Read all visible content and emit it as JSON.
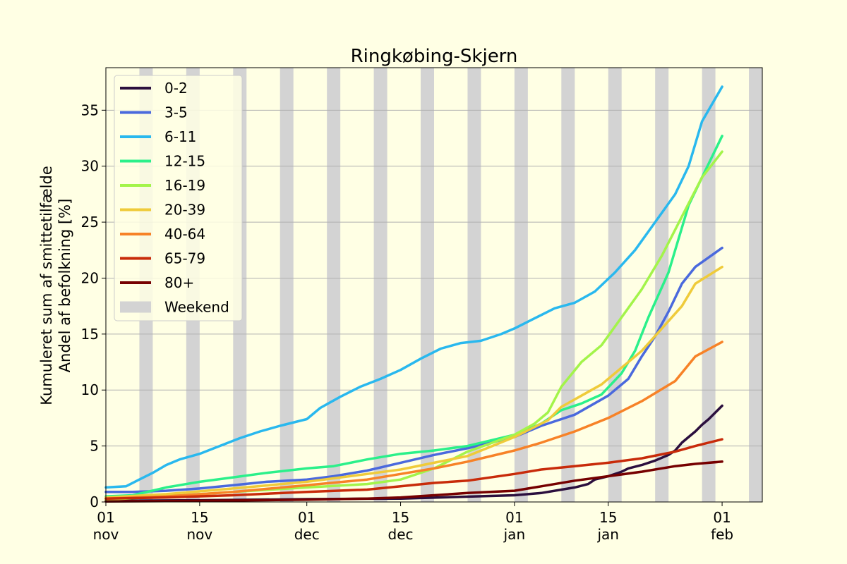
{
  "chart_data": {
    "type": "line",
    "title": "Ringkøbing-Skjern",
    "ylabel_lines": [
      "Kumuleret sum af smittetilfælde",
      "Andel af befolkning [%]"
    ],
    "xlabel": "",
    "x_start": "2021-11-01",
    "x_end": "2022-02-07",
    "ylim": [
      0,
      38.8
    ],
    "y_ticks": [
      0,
      5,
      10,
      15,
      20,
      25,
      30,
      35
    ],
    "x_ticks": [
      {
        "date": "2021-11-01",
        "day": "01",
        "month": "nov"
      },
      {
        "date": "2021-11-15",
        "day": "15",
        "month": "nov"
      },
      {
        "date": "2021-12-01",
        "day": "01",
        "month": "dec"
      },
      {
        "date": "2021-12-15",
        "day": "15",
        "month": "dec"
      },
      {
        "date": "2022-01-01",
        "day": "01",
        "month": "jan"
      },
      {
        "date": "2022-01-15",
        "day": "15",
        "month": "jan"
      },
      {
        "date": "2022-02-01",
        "day": "01",
        "month": "feb"
      }
    ],
    "grid": "horizontal",
    "legend_position": "upper-left",
    "weekend_label": "Weekend",
    "weekend_color": "#d3d3d3",
    "weekend_starts": [
      "2021-11-06",
      "2021-11-13",
      "2021-11-20",
      "2021-11-27",
      "2021-12-04",
      "2021-12-11",
      "2021-12-18",
      "2021-12-25",
      "2022-01-01",
      "2022-01-08",
      "2022-01-15",
      "2022-01-22",
      "2022-01-29",
      "2022-02-05"
    ],
    "series": [
      {
        "name": "0-2",
        "color": "#2b0f3e",
        "points": [
          [
            "2021-11-01",
            0.1
          ],
          [
            "2021-11-15",
            0.15
          ],
          [
            "2021-12-01",
            0.25
          ],
          [
            "2021-12-15",
            0.3
          ],
          [
            "2022-01-01",
            0.6
          ],
          [
            "2022-01-05",
            0.8
          ],
          [
            "2022-01-10",
            1.3
          ],
          [
            "2022-01-12",
            1.6
          ],
          [
            "2022-01-13",
            2.0
          ],
          [
            "2022-01-15",
            2.3
          ],
          [
            "2022-01-17",
            2.7
          ],
          [
            "2022-01-18",
            3.0
          ],
          [
            "2022-01-20",
            3.3
          ],
          [
            "2022-01-22",
            3.7
          ],
          [
            "2022-01-24",
            4.2
          ],
          [
            "2022-01-25",
            4.6
          ],
          [
            "2022-01-26",
            5.3
          ],
          [
            "2022-01-27",
            5.8
          ],
          [
            "2022-01-28",
            6.3
          ],
          [
            "2022-01-29",
            6.9
          ],
          [
            "2022-01-30",
            7.4
          ],
          [
            "2022-01-31",
            8.0
          ],
          [
            "2022-02-01",
            8.6
          ]
        ]
      },
      {
        "name": "3-5",
        "color": "#4a69dd",
        "points": [
          [
            "2021-11-01",
            0.9
          ],
          [
            "2021-11-05",
            0.9
          ],
          [
            "2021-11-10",
            1.0
          ],
          [
            "2021-11-15",
            1.2
          ],
          [
            "2021-11-20",
            1.5
          ],
          [
            "2021-11-25",
            1.8
          ],
          [
            "2021-12-01",
            2.0
          ],
          [
            "2021-12-05",
            2.3
          ],
          [
            "2021-12-10",
            2.8
          ],
          [
            "2021-12-15",
            3.5
          ],
          [
            "2021-12-20",
            4.2
          ],
          [
            "2021-12-25",
            4.8
          ],
          [
            "2022-01-01",
            5.8
          ],
          [
            "2022-01-05",
            6.8
          ],
          [
            "2022-01-10",
            7.8
          ],
          [
            "2022-01-15",
            9.5
          ],
          [
            "2022-01-18",
            11.0
          ],
          [
            "2022-01-20",
            13.0
          ],
          [
            "2022-01-22",
            14.8
          ],
          [
            "2022-01-24",
            17.0
          ],
          [
            "2022-01-26",
            19.5
          ],
          [
            "2022-01-28",
            21.0
          ],
          [
            "2022-02-01",
            22.7
          ]
        ]
      },
      {
        "name": "6-11",
        "color": "#29b8ee",
        "points": [
          [
            "2021-11-01",
            1.3
          ],
          [
            "2021-11-04",
            1.4
          ],
          [
            "2021-11-06",
            2.0
          ],
          [
            "2021-11-08",
            2.6
          ],
          [
            "2021-11-10",
            3.3
          ],
          [
            "2021-11-12",
            3.8
          ],
          [
            "2021-11-15",
            4.3
          ],
          [
            "2021-11-18",
            5.0
          ],
          [
            "2021-11-21",
            5.7
          ],
          [
            "2021-11-24",
            6.3
          ],
          [
            "2021-11-27",
            6.8
          ],
          [
            "2021-12-01",
            7.4
          ],
          [
            "2021-12-03",
            8.4
          ],
          [
            "2021-12-06",
            9.4
          ],
          [
            "2021-12-09",
            10.3
          ],
          [
            "2021-12-12",
            11.0
          ],
          [
            "2021-12-15",
            11.8
          ],
          [
            "2021-12-18",
            12.8
          ],
          [
            "2021-12-21",
            13.7
          ],
          [
            "2021-12-24",
            14.2
          ],
          [
            "2021-12-27",
            14.4
          ],
          [
            "2021-12-30",
            15.0
          ],
          [
            "2022-01-01",
            15.5
          ],
          [
            "2022-01-04",
            16.4
          ],
          [
            "2022-01-07",
            17.3
          ],
          [
            "2022-01-10",
            17.8
          ],
          [
            "2022-01-13",
            18.8
          ],
          [
            "2022-01-16",
            20.5
          ],
          [
            "2022-01-19",
            22.5
          ],
          [
            "2022-01-22",
            25.0
          ],
          [
            "2022-01-25",
            27.5
          ],
          [
            "2022-01-27",
            30.0
          ],
          [
            "2022-01-29",
            34.0
          ],
          [
            "2022-02-01",
            37.1
          ]
        ]
      },
      {
        "name": "12-15",
        "color": "#2bf08a",
        "points": [
          [
            "2021-11-01",
            0.5
          ],
          [
            "2021-11-05",
            0.6
          ],
          [
            "2021-11-10",
            1.3
          ],
          [
            "2021-11-15",
            1.8
          ],
          [
            "2021-11-20",
            2.2
          ],
          [
            "2021-11-25",
            2.6
          ],
          [
            "2021-12-01",
            3.0
          ],
          [
            "2021-12-05",
            3.2
          ],
          [
            "2021-12-10",
            3.8
          ],
          [
            "2021-12-15",
            4.3
          ],
          [
            "2021-12-20",
            4.6
          ],
          [
            "2021-12-25",
            5.0
          ],
          [
            "2022-01-01",
            6.0
          ],
          [
            "2022-01-05",
            7.0
          ],
          [
            "2022-01-08",
            8.2
          ],
          [
            "2022-01-11",
            8.8
          ],
          [
            "2022-01-14",
            9.6
          ],
          [
            "2022-01-17",
            11.5
          ],
          [
            "2022-01-19",
            13.5
          ],
          [
            "2022-01-21",
            16.5
          ],
          [
            "2022-01-24",
            20.5
          ],
          [
            "2022-01-27",
            26.5
          ],
          [
            "2022-01-29",
            29.0
          ],
          [
            "2022-02-01",
            32.7
          ]
        ]
      },
      {
        "name": "16-19",
        "color": "#a3f44a",
        "points": [
          [
            "2021-11-01",
            0.2
          ],
          [
            "2021-11-10",
            0.5
          ],
          [
            "2021-11-20",
            0.9
          ],
          [
            "2021-12-01",
            1.3
          ],
          [
            "2021-12-10",
            1.6
          ],
          [
            "2021-12-15",
            2.0
          ],
          [
            "2021-12-20",
            3.0
          ],
          [
            "2021-12-25",
            4.5
          ],
          [
            "2022-01-01",
            6.0
          ],
          [
            "2022-01-04",
            7.0
          ],
          [
            "2022-01-06",
            8.0
          ],
          [
            "2022-01-08",
            10.3
          ],
          [
            "2022-01-11",
            12.5
          ],
          [
            "2022-01-14",
            14.0
          ],
          [
            "2022-01-17",
            16.5
          ],
          [
            "2022-01-20",
            19.0
          ],
          [
            "2022-01-23",
            22.0
          ],
          [
            "2022-01-26",
            25.5
          ],
          [
            "2022-01-29",
            29.0
          ],
          [
            "2022-02-01",
            31.3
          ]
        ]
      },
      {
        "name": "20-39",
        "color": "#efcb3a",
        "points": [
          [
            "2021-11-01",
            0.4
          ],
          [
            "2021-11-10",
            0.7
          ],
          [
            "2021-11-20",
            1.2
          ],
          [
            "2021-12-01",
            1.8
          ],
          [
            "2021-12-10",
            2.5
          ],
          [
            "2021-12-15",
            2.9
          ],
          [
            "2021-12-20",
            3.5
          ],
          [
            "2021-12-25",
            4.1
          ],
          [
            "2022-01-01",
            5.8
          ],
          [
            "2022-01-06",
            7.3
          ],
          [
            "2022-01-08",
            8.5
          ],
          [
            "2022-01-11",
            9.5
          ],
          [
            "2022-01-14",
            10.5
          ],
          [
            "2022-01-17",
            12.0
          ],
          [
            "2022-01-20",
            13.5
          ],
          [
            "2022-01-23",
            15.5
          ],
          [
            "2022-01-26",
            17.5
          ],
          [
            "2022-01-28",
            19.5
          ],
          [
            "2022-02-01",
            21.0
          ]
        ]
      },
      {
        "name": "40-64",
        "color": "#f78227",
        "points": [
          [
            "2021-11-01",
            0.3
          ],
          [
            "2021-11-10",
            0.5
          ],
          [
            "2021-11-20",
            0.9
          ],
          [
            "2021-12-01",
            1.5
          ],
          [
            "2021-12-10",
            2.0
          ],
          [
            "2021-12-15",
            2.5
          ],
          [
            "2021-12-20",
            3.0
          ],
          [
            "2021-12-25",
            3.6
          ],
          [
            "2022-01-01",
            4.6
          ],
          [
            "2022-01-05",
            5.3
          ],
          [
            "2022-01-10",
            6.3
          ],
          [
            "2022-01-15",
            7.5
          ],
          [
            "2022-01-20",
            9.0
          ],
          [
            "2022-01-25",
            10.8
          ],
          [
            "2022-01-28",
            13.0
          ],
          [
            "2022-02-01",
            14.3
          ]
        ]
      },
      {
        "name": "65-79",
        "color": "#c82b0a",
        "points": [
          [
            "2021-11-01",
            0.3
          ],
          [
            "2021-11-10",
            0.4
          ],
          [
            "2021-11-20",
            0.6
          ],
          [
            "2021-12-01",
            0.9
          ],
          [
            "2021-12-10",
            1.1
          ],
          [
            "2021-12-15",
            1.4
          ],
          [
            "2021-12-20",
            1.7
          ],
          [
            "2021-12-25",
            1.9
          ],
          [
            "2022-01-01",
            2.5
          ],
          [
            "2022-01-05",
            2.9
          ],
          [
            "2022-01-10",
            3.2
          ],
          [
            "2022-01-15",
            3.5
          ],
          [
            "2022-01-20",
            3.9
          ],
          [
            "2022-01-25",
            4.5
          ],
          [
            "2022-01-28",
            5.0
          ],
          [
            "2022-02-01",
            5.6
          ]
        ]
      },
      {
        "name": "80+",
        "color": "#760000",
        "points": [
          [
            "2021-11-01",
            0.05
          ],
          [
            "2021-11-15",
            0.1
          ],
          [
            "2021-12-01",
            0.2
          ],
          [
            "2021-12-10",
            0.3
          ],
          [
            "2021-12-15",
            0.4
          ],
          [
            "2021-12-20",
            0.6
          ],
          [
            "2021-12-25",
            0.8
          ],
          [
            "2022-01-01",
            1.0
          ],
          [
            "2022-01-05",
            1.4
          ],
          [
            "2022-01-10",
            1.9
          ],
          [
            "2022-01-15",
            2.3
          ],
          [
            "2022-01-20",
            2.7
          ],
          [
            "2022-01-25",
            3.2
          ],
          [
            "2022-01-28",
            3.4
          ],
          [
            "2022-02-01",
            3.6
          ]
        ]
      }
    ]
  }
}
